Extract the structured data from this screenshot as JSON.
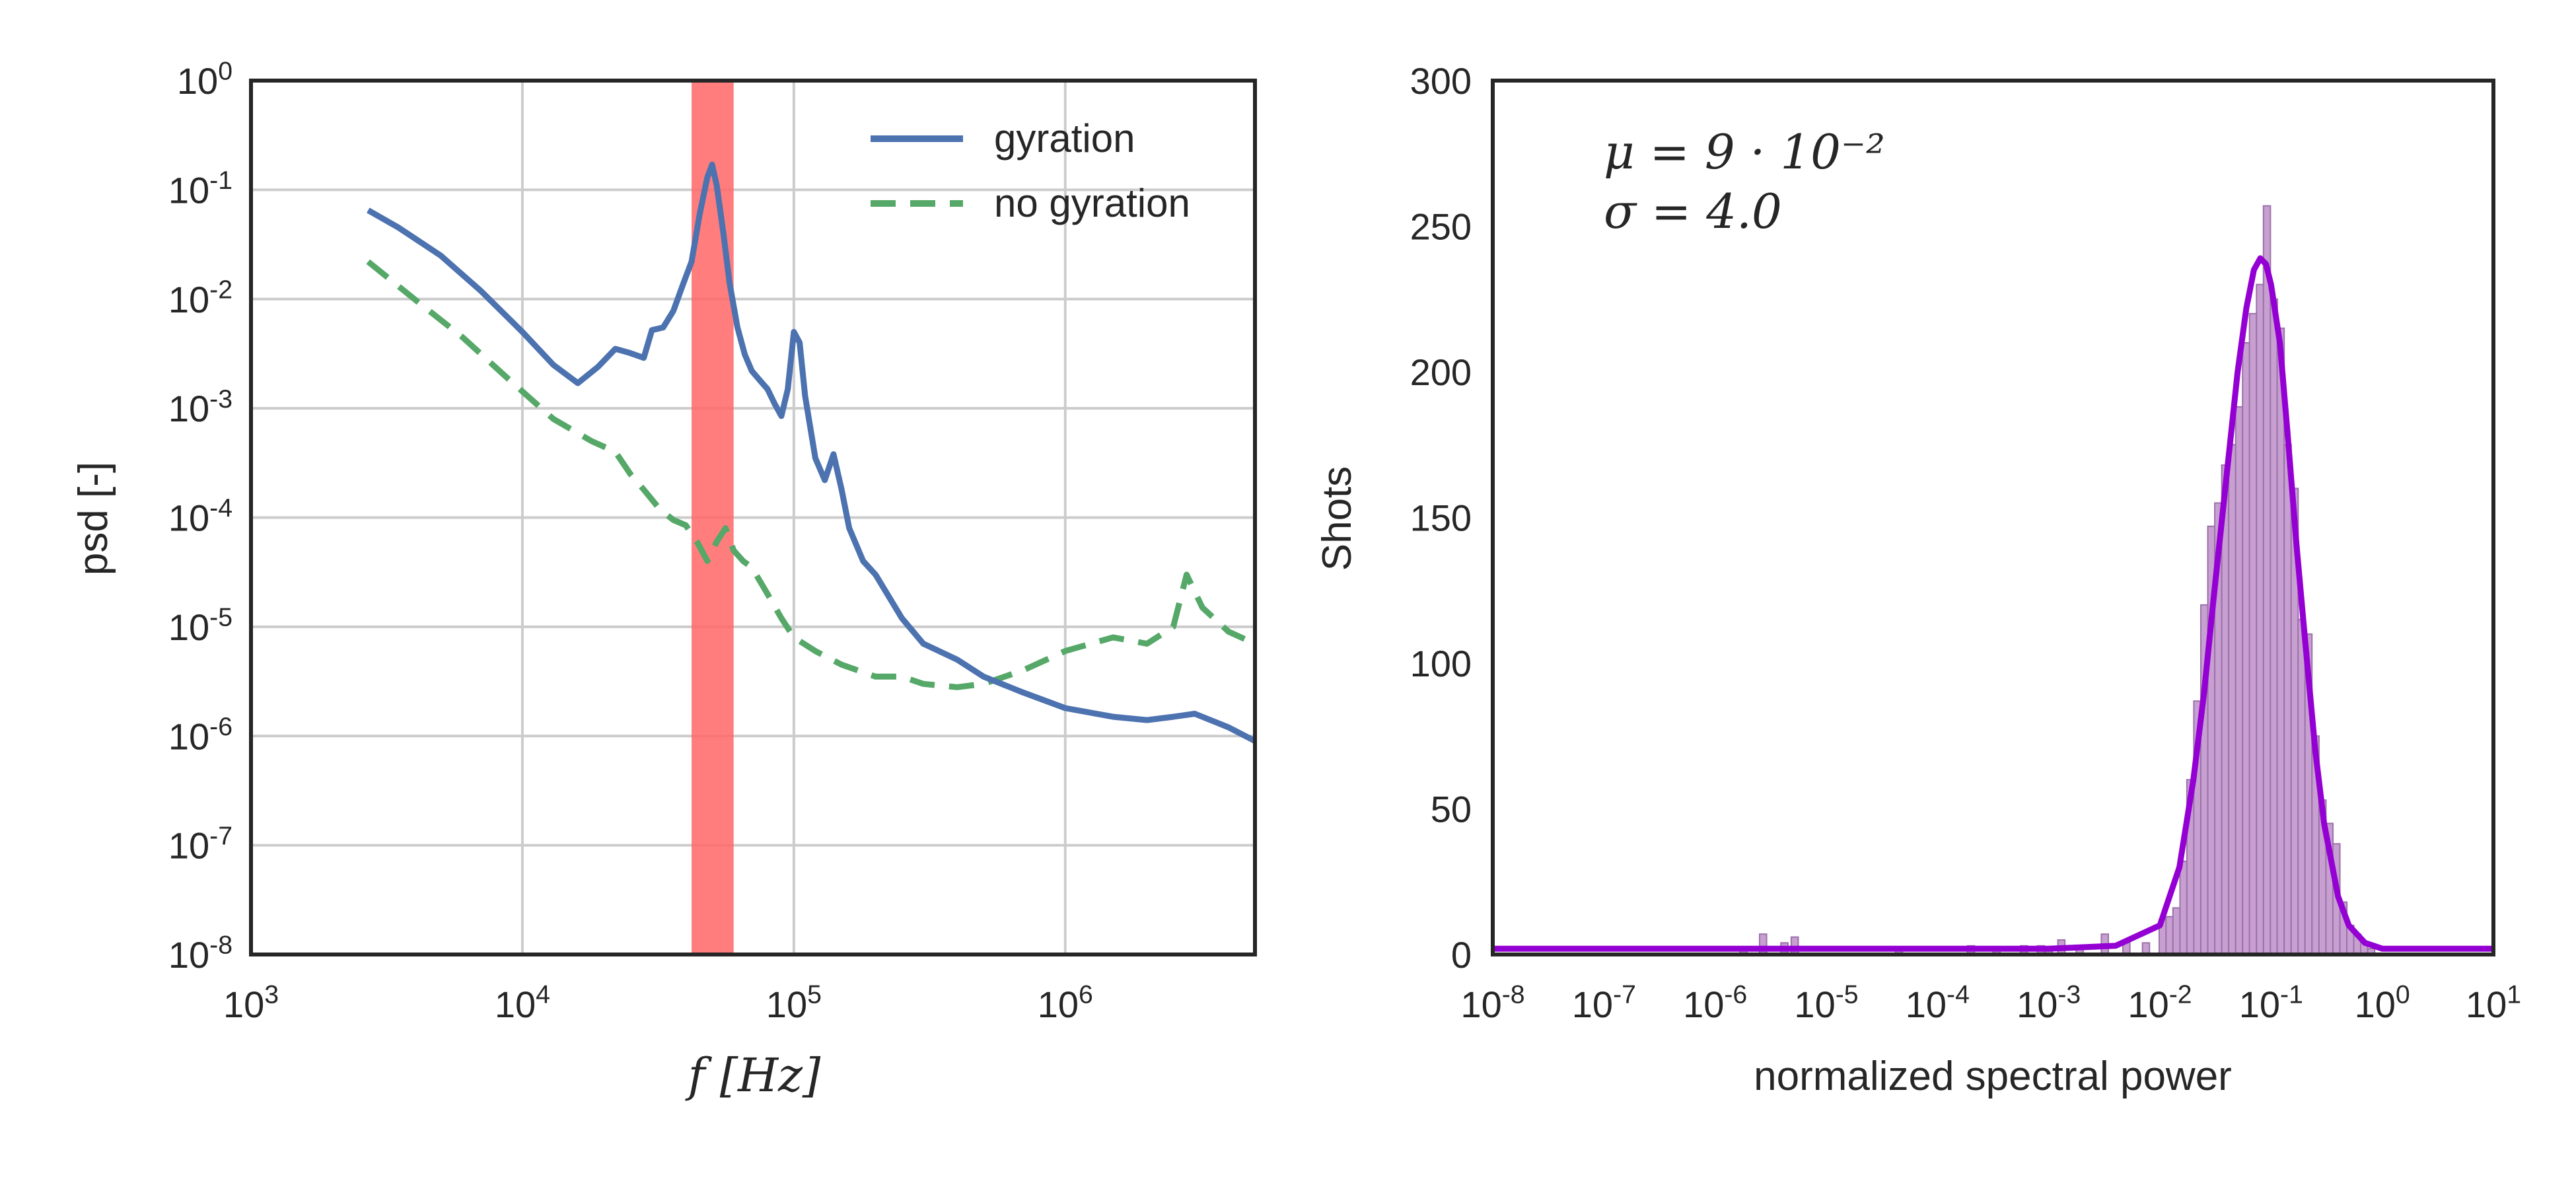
{
  "chart_data": [
    {
      "type": "line",
      "xlabel": "f [Hz]",
      "ylabel": "psd [-]",
      "xscale": "log",
      "yscale": "log",
      "xlim": [
        1000,
        5000000
      ],
      "ylim": [
        1e-08,
        1
      ],
      "x_ticks": [
        {
          "base": "10",
          "exp": "3"
        },
        {
          "base": "10",
          "exp": "4"
        },
        {
          "base": "10",
          "exp": "5"
        },
        {
          "base": "10",
          "exp": "6"
        }
      ],
      "y_ticks": [
        {
          "base": "10",
          "exp": "0"
        },
        {
          "base": "10",
          "exp": "-1"
        },
        {
          "base": "10",
          "exp": "-2"
        },
        {
          "base": "10",
          "exp": "-3"
        },
        {
          "base": "10",
          "exp": "-4"
        },
        {
          "base": "10",
          "exp": "-5"
        },
        {
          "base": "10",
          "exp": "-6"
        },
        {
          "base": "10",
          "exp": "-7"
        },
        {
          "base": "10",
          "exp": "-8"
        }
      ],
      "grid": true,
      "legend_position": "top-right",
      "highlight_band": {
        "x": [
          42000,
          60000
        ],
        "color": "#ff6666"
      },
      "series": [
        {
          "name": "gyration",
          "color": "#4c72b0",
          "style": "solid",
          "x": [
            2700,
            3500,
            5000,
            7000,
            10000,
            13000,
            16000,
            19000,
            22000,
            25000,
            28000,
            30000,
            33000,
            36000,
            39000,
            42000,
            45000,
            48000,
            50000,
            52000,
            55000,
            58000,
            62000,
            66000,
            70000,
            75000,
            80000,
            85000,
            90000,
            95000,
            100000,
            105000,
            110000,
            120000,
            130000,
            140000,
            150000,
            160000,
            180000,
            200000,
            250000,
            300000,
            400000,
            500000,
            700000,
            1000000,
            1500000,
            2000000,
            2500000,
            3000000,
            4000000,
            5000000
          ],
          "y": [
            0.065,
            0.045,
            0.025,
            0.012,
            0.005,
            0.0025,
            0.0017,
            0.0024,
            0.0035,
            0.0032,
            0.0029,
            0.0052,
            0.0055,
            0.0078,
            0.0135,
            0.022,
            0.06,
            0.13,
            0.17,
            0.11,
            0.04,
            0.014,
            0.0055,
            0.0031,
            0.0022,
            0.0018,
            0.0015,
            0.0011,
            0.00085,
            0.0015,
            0.005,
            0.004,
            0.0013,
            0.00035,
            0.00022,
            0.00038,
            0.00018,
            8e-05,
            4e-05,
            3e-05,
            1.2e-05,
            7e-06,
            5e-06,
            3.5e-06,
            2.5e-06,
            1.8e-06,
            1.5e-06,
            1.4e-06,
            1.5e-06,
            1.6e-06,
            1.2e-06,
            9e-07
          ]
        },
        {
          "name": "no gyration",
          "color": "#55a868",
          "style": "dashed",
          "x": [
            2700,
            4000,
            6000,
            9000,
            13000,
            18000,
            22000,
            25000,
            28000,
            32000,
            36000,
            40000,
            44000,
            48000,
            52000,
            56000,
            60000,
            65000,
            70000,
            80000,
            90000,
            100000,
            120000,
            150000,
            200000,
            250000,
            300000,
            400000,
            500000,
            700000,
            1000000,
            1500000,
            2000000,
            2500000,
            2800000,
            3200000,
            4000000,
            5000000
          ],
          "y": [
            0.022,
            0.01,
            0.0045,
            0.0018,
            0.0008,
            0.0005,
            0.0004,
            0.00025,
            0.00018,
            0.00012,
            9.5e-05,
            8.5e-05,
            6e-05,
            4e-05,
            6e-05,
            8e-05,
            5e-05,
            4e-05,
            3.5e-05,
            2e-05,
            1.2e-05,
            8e-06,
            6e-06,
            4.5e-06,
            3.5e-06,
            3.5e-06,
            3e-06,
            2.8e-06,
            3e-06,
            4e-06,
            6e-06,
            8e-06,
            7e-06,
            1e-05,
            3e-05,
            1.5e-05,
            9e-06,
            7e-06
          ]
        }
      ]
    },
    {
      "type": "bar",
      "xlabel": "normalized spectral power",
      "ylabel": "Shots",
      "xscale": "log",
      "xlim": [
        1e-08,
        10
      ],
      "ylim": [
        0,
        300
      ],
      "x_ticks": [
        {
          "base": "10",
          "exp": "-8"
        },
        {
          "base": "10",
          "exp": "-7"
        },
        {
          "base": "10",
          "exp": "-6"
        },
        {
          "base": "10",
          "exp": "-5"
        },
        {
          "base": "10",
          "exp": "-4"
        },
        {
          "base": "10",
          "exp": "-3"
        },
        {
          "base": "10",
          "exp": "-2"
        },
        {
          "base": "10",
          "exp": "-1"
        },
        {
          "base": "10",
          "exp": "0"
        },
        {
          "base": "10",
          "exp": "1"
        }
      ],
      "y_ticks": [
        "0",
        "50",
        "100",
        "150",
        "200",
        "250",
        "300"
      ],
      "grid": false,
      "annotations": [
        "μ = 9 · 10⁻²",
        "σ = 4.0"
      ],
      "bar_color": "#c79fd0",
      "bar_edge_color": "#9b72a8",
      "fit_color": "#9400d3",
      "histogram": [
        {
          "x": 1.8e-06,
          "value": 2
        },
        {
          "x": 2.7e-06,
          "value": 7
        },
        {
          "x": 4.2e-06,
          "value": 4
        },
        {
          "x": 5.2e-06,
          "value": 6
        },
        {
          "x": 4.5e-05,
          "value": 2
        },
        {
          "x": 0.0002,
          "value": 3
        },
        {
          "x": 0.00034,
          "value": 2
        },
        {
          "x": 0.0006,
          "value": 3
        },
        {
          "x": 0.00085,
          "value": 3
        },
        {
          "x": 0.001,
          "value": 2
        },
        {
          "x": 0.0013,
          "value": 5
        },
        {
          "x": 0.0019,
          "value": 3
        },
        {
          "x": 0.0032,
          "value": 7
        },
        {
          "x": 0.005,
          "value": 5
        },
        {
          "x": 0.0075,
          "value": 4
        },
        {
          "x": 0.0106,
          "value": 12
        },
        {
          "x": 0.0122,
          "value": 13
        },
        {
          "x": 0.0141,
          "value": 16
        },
        {
          "x": 0.0163,
          "value": 32
        },
        {
          "x": 0.0188,
          "value": 60
        },
        {
          "x": 0.0217,
          "value": 87
        },
        {
          "x": 0.0251,
          "value": 120
        },
        {
          "x": 0.029,
          "value": 147
        },
        {
          "x": 0.0335,
          "value": 155
        },
        {
          "x": 0.0387,
          "value": 168
        },
        {
          "x": 0.0447,
          "value": 175
        },
        {
          "x": 0.0516,
          "value": 188
        },
        {
          "x": 0.0596,
          "value": 210
        },
        {
          "x": 0.0688,
          "value": 220
        },
        {
          "x": 0.0795,
          "value": 230
        },
        {
          "x": 0.0918,
          "value": 257
        },
        {
          "x": 0.106,
          "value": 225
        },
        {
          "x": 0.122,
          "value": 215
        },
        {
          "x": 0.141,
          "value": 175
        },
        {
          "x": 0.163,
          "value": 160
        },
        {
          "x": 0.188,
          "value": 115
        },
        {
          "x": 0.217,
          "value": 110
        },
        {
          "x": 0.251,
          "value": 75
        },
        {
          "x": 0.29,
          "value": 53
        },
        {
          "x": 0.335,
          "value": 45
        },
        {
          "x": 0.387,
          "value": 38
        },
        {
          "x": 0.447,
          "value": 18
        },
        {
          "x": 0.516,
          "value": 10
        },
        {
          "x": 0.596,
          "value": 7
        },
        {
          "x": 0.688,
          "value": 4
        },
        {
          "x": 0.795,
          "value": 2
        }
      ],
      "fit": {
        "type": "lognormal",
        "x": [
          1e-08,
          0.001,
          0.004,
          0.01,
          0.015,
          0.02,
          0.025,
          0.03,
          0.04,
          0.05,
          0.06,
          0.07,
          0.08,
          0.09,
          0.1,
          0.12,
          0.14,
          0.17,
          0.2,
          0.25,
          0.3,
          0.4,
          0.5,
          0.7,
          1,
          2,
          10
        ],
        "y": [
          2,
          2,
          3,
          10,
          30,
          60,
          90,
          120,
          165,
          200,
          222,
          235,
          239,
          237,
          230,
          210,
          180,
          140,
          110,
          70,
          45,
          20,
          10,
          4,
          2,
          2,
          2
        ]
      }
    }
  ]
}
